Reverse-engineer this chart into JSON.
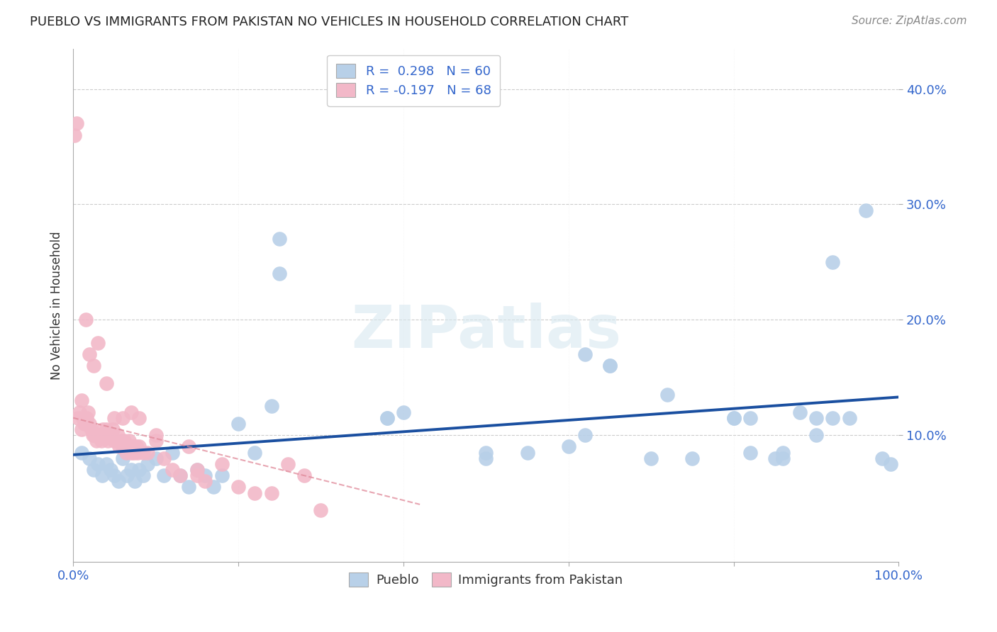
{
  "title": "PUEBLO VS IMMIGRANTS FROM PAKISTAN NO VEHICLES IN HOUSEHOLD CORRELATION CHART",
  "source": "Source: ZipAtlas.com",
  "ylabel": "No Vehicles in Household",
  "xlim": [
    0,
    1.0
  ],
  "ylim": [
    -0.01,
    0.435
  ],
  "xticks": [
    0.0,
    0.2,
    0.4,
    0.6,
    0.8,
    1.0
  ],
  "xtick_labels": [
    "0.0%",
    "",
    "",
    "",
    "",
    "100.0%"
  ],
  "yticks": [
    0.1,
    0.2,
    0.3,
    0.4
  ],
  "ytick_labels": [
    "10.0%",
    "20.0%",
    "30.0%",
    "40.0%"
  ],
  "legend_line1": "R =  0.298   N = 60",
  "legend_line2": "R = -0.197   N = 68",
  "blue_color": "#b8d0e8",
  "pink_color": "#f2b8c8",
  "trend_blue_color": "#1a4fa0",
  "trend_pink_color": "#e08898",
  "background_color": "#ffffff",
  "grid_color": "#cccccc",
  "watermark_text": "ZIPatlas",
  "blue_scatter_x": [
    0.01,
    0.02,
    0.025,
    0.03,
    0.035,
    0.04,
    0.045,
    0.05,
    0.055,
    0.06,
    0.065,
    0.07,
    0.075,
    0.08,
    0.085,
    0.09,
    0.1,
    0.11,
    0.12,
    0.13,
    0.14,
    0.15,
    0.16,
    0.17,
    0.18,
    0.2,
    0.22,
    0.24,
    0.25,
    0.38,
    0.4,
    0.5,
    0.55,
    0.6,
    0.62,
    0.65,
    0.7,
    0.75,
    0.8,
    0.82,
    0.85,
    0.86,
    0.88,
    0.9,
    0.92,
    0.94,
    0.96,
    0.98,
    0.99,
    0.62,
    0.65,
    0.72,
    0.8,
    0.82,
    0.86,
    0.9,
    0.92,
    0.5,
    0.38,
    0.25
  ],
  "blue_scatter_y": [
    0.085,
    0.08,
    0.07,
    0.075,
    0.065,
    0.075,
    0.07,
    0.065,
    0.06,
    0.08,
    0.065,
    0.07,
    0.06,
    0.07,
    0.065,
    0.075,
    0.08,
    0.065,
    0.085,
    0.065,
    0.055,
    0.07,
    0.065,
    0.055,
    0.065,
    0.11,
    0.085,
    0.125,
    0.27,
    0.115,
    0.12,
    0.085,
    0.085,
    0.09,
    0.1,
    0.16,
    0.08,
    0.08,
    0.115,
    0.115,
    0.08,
    0.085,
    0.12,
    0.115,
    0.25,
    0.115,
    0.295,
    0.08,
    0.075,
    0.17,
    0.16,
    0.135,
    0.115,
    0.085,
    0.08,
    0.1,
    0.115,
    0.08,
    0.115,
    0.24
  ],
  "pink_scatter_x": [
    0.002,
    0.004,
    0.006,
    0.008,
    0.01,
    0.012,
    0.014,
    0.016,
    0.018,
    0.02,
    0.022,
    0.024,
    0.026,
    0.028,
    0.03,
    0.032,
    0.034,
    0.036,
    0.038,
    0.04,
    0.042,
    0.044,
    0.046,
    0.048,
    0.05,
    0.052,
    0.054,
    0.056,
    0.058,
    0.06,
    0.062,
    0.064,
    0.066,
    0.068,
    0.07,
    0.072,
    0.074,
    0.076,
    0.078,
    0.08,
    0.085,
    0.09,
    0.1,
    0.11,
    0.12,
    0.13,
    0.14,
    0.15,
    0.16,
    0.18,
    0.2,
    0.22,
    0.24,
    0.26,
    0.28,
    0.3,
    0.01,
    0.015,
    0.02,
    0.025,
    0.03,
    0.04,
    0.05,
    0.06,
    0.07,
    0.08,
    0.1,
    0.15
  ],
  "pink_scatter_y": [
    0.36,
    0.37,
    0.115,
    0.12,
    0.105,
    0.115,
    0.11,
    0.115,
    0.12,
    0.11,
    0.105,
    0.1,
    0.1,
    0.095,
    0.1,
    0.1,
    0.095,
    0.105,
    0.1,
    0.105,
    0.095,
    0.1,
    0.1,
    0.105,
    0.095,
    0.095,
    0.1,
    0.09,
    0.095,
    0.09,
    0.095,
    0.085,
    0.09,
    0.095,
    0.085,
    0.09,
    0.085,
    0.09,
    0.085,
    0.09,
    0.085,
    0.085,
    0.095,
    0.08,
    0.07,
    0.065,
    0.09,
    0.065,
    0.06,
    0.075,
    0.055,
    0.05,
    0.05,
    0.075,
    0.065,
    0.035,
    0.13,
    0.2,
    0.17,
    0.16,
    0.18,
    0.145,
    0.115,
    0.115,
    0.12,
    0.115,
    0.1,
    0.07
  ],
  "blue_trend_x": [
    0.0,
    1.0
  ],
  "blue_trend_y": [
    0.083,
    0.133
  ],
  "pink_trend_x": [
    0.0,
    0.42
  ],
  "pink_trend_y": [
    0.115,
    0.04
  ]
}
